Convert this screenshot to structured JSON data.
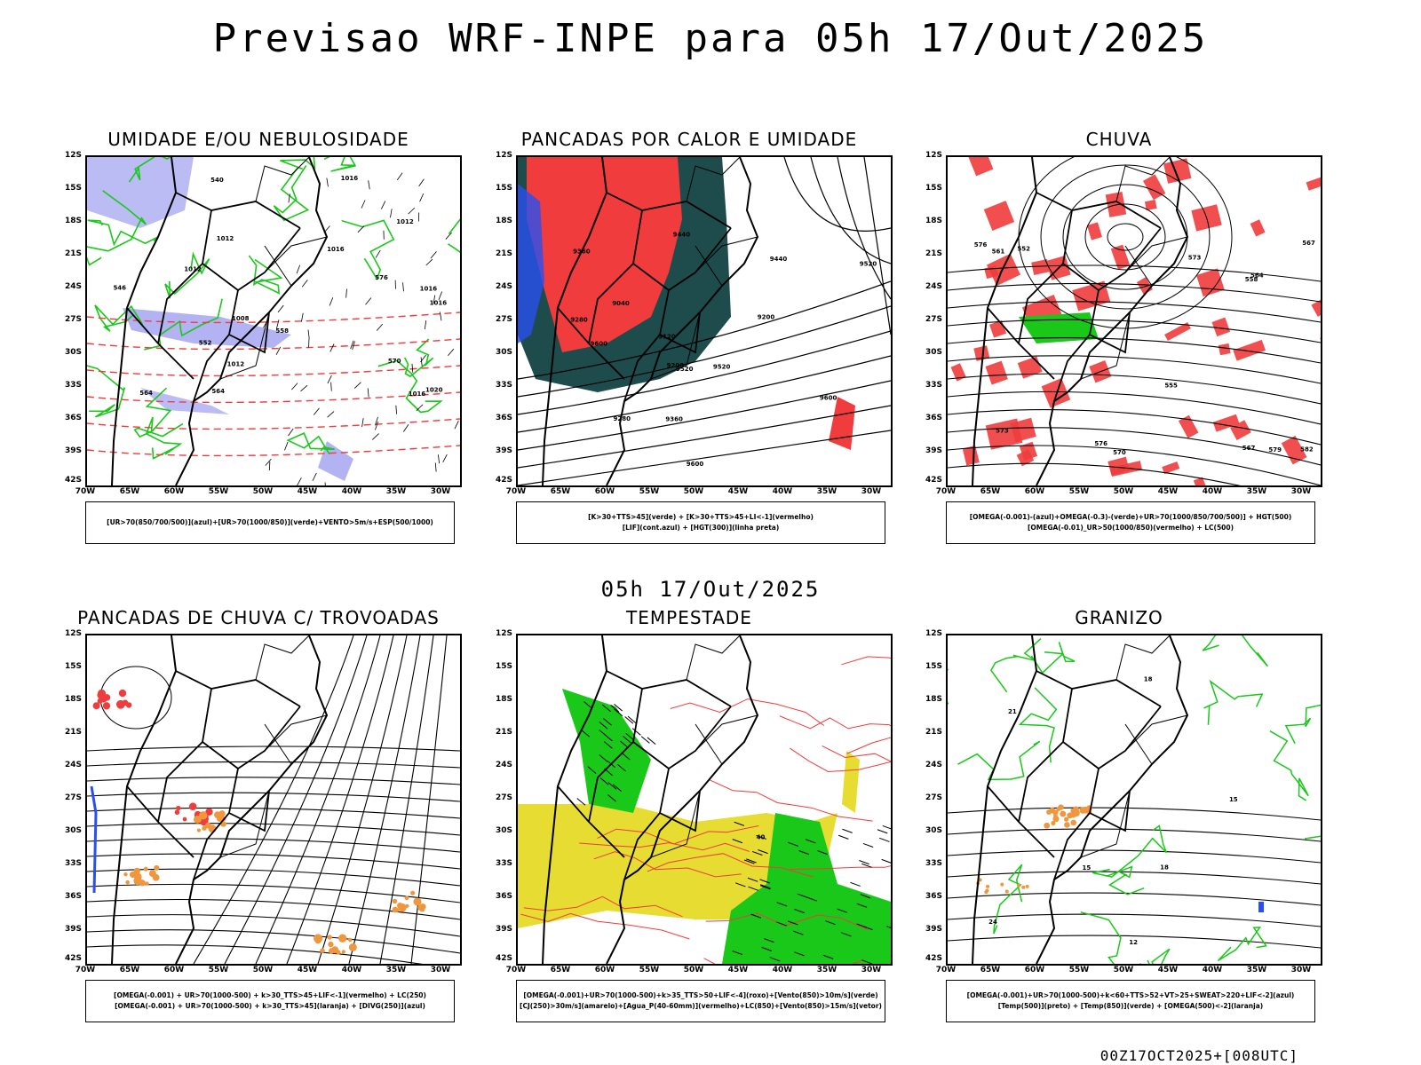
{
  "title": "Previsao WRF-INPE  para 05h 17/Out/2025",
  "mid_date": "05h 17/Out/2025",
  "footer": "00Z17OCT2025+[008UTC]",
  "lat_labels": [
    "12S",
    "15S",
    "18S",
    "21S",
    "24S",
    "27S",
    "30S",
    "33S",
    "36S",
    "39S",
    "42S"
  ],
  "lon_labels": [
    "70W",
    "65W",
    "60W",
    "55W",
    "50W",
    "45W",
    "40W",
    "35W",
    "30W"
  ],
  "colors": {
    "green": "#19c819",
    "red": "#f03c3c",
    "blue": "#2850f0",
    "lightblue": "#a0a0f0",
    "darkteal": "#1e4b4b",
    "yellow": "#e6dc32",
    "orange": "#f0963c",
    "black": "#000000"
  },
  "panels": [
    {
      "title": "UMIDADE E/OU NEBULOSIDADE",
      "legend": [
        "[UR>70(850/700/500)](azul)+[UR>70(1000/850)](verde)+VENTO>5m/s+ESP(500/1000)"
      ],
      "labels": [
        "1012",
        "1016",
        "1016",
        "1016",
        "1008",
        "1020",
        "1012",
        "1016",
        "1016",
        "1012",
        "1012",
        "570",
        "576",
        "564",
        "564",
        "558",
        "552",
        "546",
        "540"
      ]
    },
    {
      "title": "PANCADAS POR CALOR E UMIDADE",
      "legend": [
        "[K>30+TTS>45](verde) + [K>30+TTS>45+LI<-1](vermelho)",
        "[LIF](cont.azul) + [HGT(300)](linha preta)"
      ],
      "labels": [
        "9600",
        "9520",
        "9600",
        "9520",
        "9440",
        "9360",
        "9280",
        "9200",
        "9120",
        "9040",
        "9440",
        "9360",
        "9280",
        "9200",
        "9520",
        "9600"
      ]
    },
    {
      "title": "CHUVA",
      "legend": [
        "[OMEGA(-0.001)-(azul)+OMEGA(-0.3)-(verde)+UR>70(1000/850/700/500)] + HGT(500)",
        "[OMEGA(-0.01)_UR>50(1000/850)(vermelho) + LC(500)"
      ],
      "labels": [
        "582",
        "579",
        "576",
        "573",
        "570",
        "567",
        "564",
        "561",
        "558",
        "555",
        "552",
        "576",
        "573",
        "567"
      ]
    },
    {
      "title": "PANCADAS DE CHUVA C/ TROVOADAS",
      "legend": [
        "[OMEGA(-0.001) + UR>70(1000-500) + k>30_TTS>45+LIF<-1](vermelho) + LC(250)",
        "[OMEGA(-0.001) + UR>70(1000-500) + k>30_TTS>45](laranja) + [DIVG(250)](azul)"
      ],
      "labels": []
    },
    {
      "title": "TEMPESTADE",
      "legend": [
        "[OMEGA(-0.001)+UR>70(1000-500)+k>35_TTS>50+LIF<-4](roxo)+[Vento(850)>10m/s](verde)",
        "[CJ(250)>30m/s](amarelo)+[Agua_P(40-60mm)](vermelho)+LC(850)+[Vento(850)>15m/s](vetor)"
      ],
      "labels": [
        "40"
      ]
    },
    {
      "title": "GRANIZO",
      "legend": [
        "[OMEGA(-0.001)+UR>70(1000-500)+k<60+TTS>52+VT>25+SWEAT>220+LIF<-2](azul)",
        "[Temp(500)](preto) + [Temp(850)](verde) + [OMEGA(500)<-2](laranja)"
      ],
      "labels": [
        "12",
        "15",
        "18",
        "15",
        "18",
        "21",
        "24"
      ]
    }
  ]
}
